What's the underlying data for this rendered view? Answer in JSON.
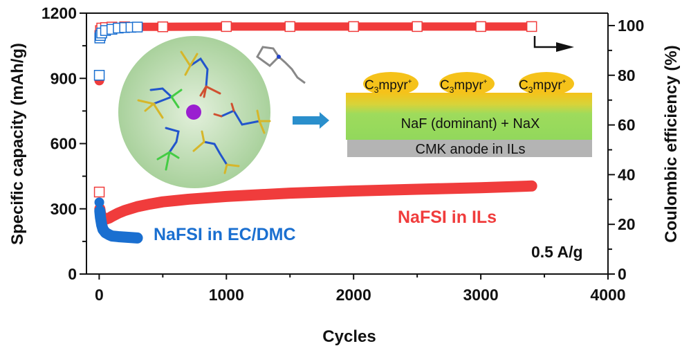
{
  "chart_data": {
    "type": "scatter",
    "xlabel": "Cycles",
    "ylabel": "Specific capacity (mAh/g)",
    "y2label": "Coulombic efficiency (%)",
    "xlim": [
      -100,
      4000
    ],
    "ylim": [
      0,
      1200
    ],
    "y2lim": [
      0,
      105
    ],
    "xticks": [
      "0",
      "1000",
      "2000",
      "3000",
      "4000"
    ],
    "xtick_values": [
      0,
      1000,
      2000,
      3000,
      4000
    ],
    "yticks": [
      "0",
      "300",
      "600",
      "900",
      "1200"
    ],
    "ytick_values": [
      0,
      300,
      600,
      900,
      1200
    ],
    "y2ticks": [
      "0",
      "20",
      "40",
      "60",
      "80",
      "100"
    ],
    "y2tick_values": [
      0,
      20,
      40,
      60,
      80,
      100
    ],
    "grid": false,
    "colors": {
      "ils": "#f03c3c",
      "ecdmc": "#1a6fd0"
    },
    "series": [
      {
        "name": "NaFSI in ILs",
        "axis": "left",
        "marker": "filled-circle",
        "color": "#f03c3c",
        "x": [
          1,
          5,
          10,
          20,
          30,
          50,
          80,
          100,
          150,
          200,
          300,
          400,
          500,
          700,
          1000,
          1500,
          2000,
          2500,
          3000,
          3400
        ],
        "y": [
          890,
          300,
          280,
          265,
          258,
          252,
          258,
          265,
          280,
          292,
          310,
          322,
          332,
          344,
          357,
          372,
          382,
          390,
          397,
          405
        ]
      },
      {
        "name": "NaFSI in EC/DMC",
        "axis": "left",
        "marker": "filled-circle",
        "color": "#1a6fd0",
        "x": [
          1,
          5,
          10,
          20,
          30,
          50,
          80,
          100,
          150,
          200,
          250,
          300
        ],
        "y": [
          330,
          290,
          260,
          225,
          205,
          190,
          180,
          175,
          172,
          170,
          168,
          166
        ]
      },
      {
        "axis": "right",
        "marker": "open-square",
        "color": "#f03c3c",
        "x": [
          1,
          5,
          10,
          20,
          50,
          100,
          200,
          500,
          1000,
          1500,
          2000,
          2500,
          3000,
          3400
        ],
        "y": [
          33,
          96,
          98,
          99,
          99.2,
          99.4,
          99.5,
          99.5,
          99.6,
          99.6,
          99.6,
          99.6,
          99.6,
          99.6
        ]
      },
      {
        "axis": "right",
        "marker": "open-square",
        "color": "#1a6fd0",
        "x": [
          1,
          5,
          10,
          20,
          50,
          100,
          150,
          200,
          250,
          300
        ],
        "y": [
          80,
          95,
          96,
          97,
          98,
          98.5,
          99,
          99.2,
          99.3,
          99.4
        ]
      }
    ],
    "annotations": {
      "ils_label": "NaFSI in ILs",
      "ecdmc_label": "NaFSI in EC/DMC",
      "current_density": "0.5 A/g"
    }
  },
  "inset": {
    "cation_labels": [
      "C3mpyr+",
      "C3mpyr+",
      "C3mpyr+"
    ],
    "cation_main": "C",
    "cation_sub": "3",
    "cation_rest": "mpyr",
    "cation_sup": "+",
    "sei_layer": "NaF (dominant) + NaX",
    "anode_layer": "CMK anode in ILs"
  }
}
